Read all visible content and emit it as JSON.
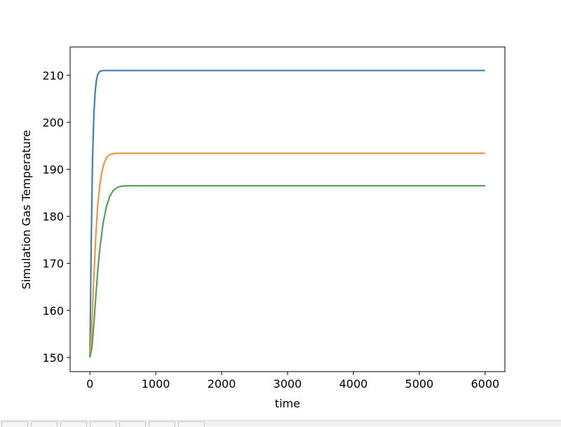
{
  "chart_data": {
    "type": "line",
    "title": "",
    "xlabel": "time",
    "ylabel": "Simulation Gas Temperature",
    "xlim": [
      -300,
      6300
    ],
    "ylim": [
      147,
      216
    ],
    "xticks": [
      0,
      1000,
      2000,
      3000,
      4000,
      5000,
      6000
    ],
    "yticks": [
      150,
      160,
      170,
      180,
      190,
      200,
      210
    ],
    "grid": false,
    "legend": false,
    "series": [
      {
        "color": "#3b80b8",
        "x": [
          0,
          20,
          40,
          60,
          80,
          100,
          120,
          150,
          200,
          300,
          500,
          1000,
          3000,
          6000
        ],
        "y": [
          150,
          174,
          192,
          201.5,
          206.5,
          209,
          210.2,
          210.8,
          211,
          211,
          211,
          211,
          211,
          211
        ]
      },
      {
        "color": "#f0953a",
        "x": [
          0,
          30,
          60,
          90,
          120,
          150,
          180,
          220,
          260,
          300,
          350,
          400,
          500,
          1000,
          3000,
          6000
        ],
        "y": [
          150,
          157,
          167,
          176,
          182.5,
          186.5,
          189.3,
          191.5,
          192.6,
          193.1,
          193.3,
          193.4,
          193.4,
          193.4,
          193.4,
          193.4
        ]
      },
      {
        "color": "#4fa553",
        "x": [
          0,
          30,
          60,
          90,
          120,
          150,
          200,
          250,
          300,
          350,
          400,
          450,
          500,
          600,
          1000,
          3000,
          6000
        ],
        "y": [
          150,
          152,
          157,
          163,
          168.5,
          173,
          178.5,
          182,
          184.2,
          185.4,
          186,
          186.3,
          186.45,
          186.5,
          186.5,
          186.5,
          186.5
        ]
      }
    ]
  }
}
